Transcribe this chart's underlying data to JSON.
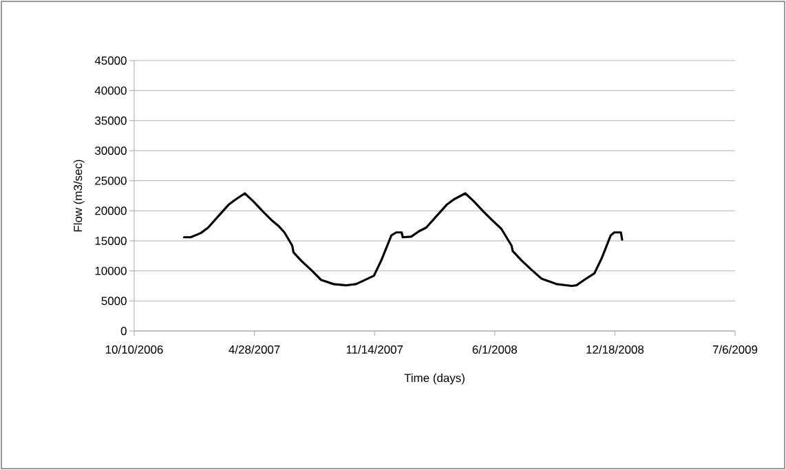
{
  "chart_data": {
    "type": "line",
    "xlabel": "Time (days)",
    "ylabel": "Flow (m3/sec)",
    "x": [
      "2007-01-01",
      "2007-01-12",
      "2007-01-29",
      "2007-02-10",
      "2007-02-27",
      "2007-03-16",
      "2007-03-28",
      "2007-04-12",
      "2007-04-26",
      "2007-05-13",
      "2007-05-26",
      "2007-06-07",
      "2007-06-17",
      "2007-06-30",
      "2007-07-02",
      "2007-07-15",
      "2007-07-31",
      "2007-08-17",
      "2007-09-07",
      "2007-09-28",
      "2007-10-14",
      "2007-10-27",
      "2007-11-13",
      "2007-11-25",
      "2007-12-12",
      "2007-12-20",
      "2007-12-29",
      "2007-12-31",
      "2008-01-14",
      "2008-01-27",
      "2008-02-08",
      "2008-02-25",
      "2008-03-13",
      "2008-03-25",
      "2008-04-13",
      "2008-04-27",
      "2008-05-14",
      "2008-05-27",
      "2008-06-12",
      "2008-06-29",
      "2008-07-01",
      "2008-07-16",
      "2008-08-01",
      "2008-08-18",
      "2008-09-12",
      "2008-10-07",
      "2008-10-15",
      "2008-10-28",
      "2008-11-14",
      "2008-11-26",
      "2008-12-11",
      "2008-12-17",
      "2008-12-28",
      "2008-12-30"
    ],
    "series": [
      {
        "color": "#000000",
        "values": [
          15600,
          15600,
          16300,
          17200,
          19100,
          21000,
          21900,
          22900,
          21600,
          19800,
          18500,
          17500,
          16400,
          14200,
          13100,
          11700,
          10200,
          8500,
          7800,
          7600,
          7800,
          8400,
          9200,
          11700,
          15900,
          16400,
          16400,
          15600,
          15700,
          16600,
          17200,
          19100,
          21000,
          21900,
          22900,
          21600,
          19800,
          18500,
          17000,
          14200,
          13300,
          11700,
          10200,
          8700,
          7800,
          7500,
          7600,
          8500,
          9600,
          12100,
          15900,
          16400,
          16400,
          15200
        ]
      }
    ],
    "xlim": [
      "2006-10-10",
      "2009-07-06"
    ],
    "xticks": [
      {
        "value": "2006-10-10",
        "label": "10/10/2006"
      },
      {
        "value": "2007-04-28",
        "label": "4/28/2007"
      },
      {
        "value": "2007-11-14",
        "label": "11/14/2007"
      },
      {
        "value": "2008-06-01",
        "label": "6/1/2008"
      },
      {
        "value": "2008-12-18",
        "label": "12/18/2008"
      },
      {
        "value": "2009-07-06",
        "label": "7/6/2009"
      }
    ],
    "ylim": [
      0,
      45000
    ],
    "yticks": [
      0,
      5000,
      10000,
      15000,
      20000,
      25000,
      30000,
      35000,
      40000,
      45000
    ],
    "grid": "y",
    "marker": "none",
    "line_style": "solid"
  }
}
